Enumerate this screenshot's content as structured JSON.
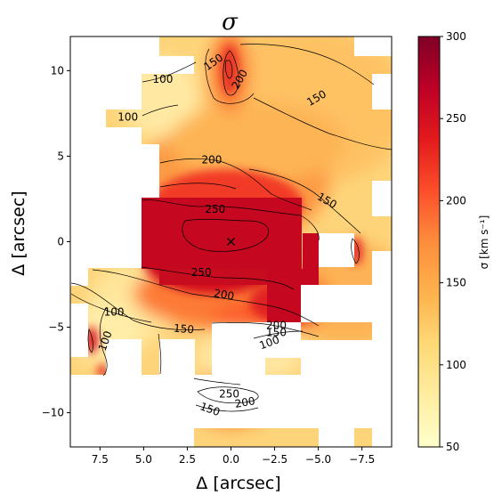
{
  "chart_data": {
    "type": "heatmap",
    "title": "σ",
    "xlabel": "Δ [arcsec]",
    "ylabel": "Δ [arcsec]",
    "xlim": [
      9.2,
      -9.2
    ],
    "ylim": [
      -12,
      12
    ],
    "x_ticks": [
      7.5,
      5.0,
      2.5,
      0.0,
      -2.5,
      -5.0,
      -7.5
    ],
    "x_tick_labels": [
      "7.5",
      "5.0",
      "2.5",
      "0.0",
      "−2.5",
      "−5.0",
      "−7.5"
    ],
    "y_ticks": [
      10,
      5,
      0,
      -5,
      -10
    ],
    "y_tick_labels": [
      "10",
      "5",
      "0",
      "−5",
      "−10"
    ],
    "colorbar": {
      "label": "σ [km s⁻¹]",
      "range": [
        50,
        300
      ],
      "ticks": [
        50,
        100,
        150,
        200,
        250,
        300
      ],
      "tick_labels": [
        "50",
        "100",
        "150",
        "200",
        "250",
        "300"
      ],
      "colormap": "YlOrRd"
    },
    "marker": {
      "symbol": "×",
      "x": 0.0,
      "y": 0.0
    },
    "contour_labels": [
      {
        "text": "150",
        "x": 1.0,
        "y": 10.5
      },
      {
        "text": "200",
        "x": -0.5,
        "y": 9.5
      },
      {
        "text": "100",
        "x": 3.9,
        "y": 9.5
      },
      {
        "text": "100",
        "x": 5.9,
        "y": 7.3
      },
      {
        "text": "150",
        "x": -4.9,
        "y": 8.4
      },
      {
        "text": "200",
        "x": 1.1,
        "y": 4.8
      },
      {
        "text": "150",
        "x": -5.5,
        "y": 2.4
      },
      {
        "text": "250",
        "x": 0.9,
        "y": 1.9
      },
      {
        "text": "250",
        "x": 1.7,
        "y": -1.8
      },
      {
        "text": "200",
        "x": 0.4,
        "y": -3.1
      },
      {
        "text": "100",
        "x": 6.7,
        "y": -4.1
      },
      {
        "text": "150",
        "x": 2.7,
        "y": -5.1
      },
      {
        "text": "200",
        "x": -2.6,
        "y": -4.9
      },
      {
        "text": "150",
        "x": -2.6,
        "y": -5.3
      },
      {
        "text": "100",
        "x": -2.2,
        "y": -5.9
      },
      {
        "text": "100",
        "x": 7.2,
        "y": -5.8
      },
      {
        "text": "250",
        "x": 0.1,
        "y": -8.9
      },
      {
        "text": "200",
        "x": -0.8,
        "y": -9.4
      },
      {
        "text": "150",
        "x": 1.2,
        "y": -9.8
      }
    ],
    "grid": false
  }
}
